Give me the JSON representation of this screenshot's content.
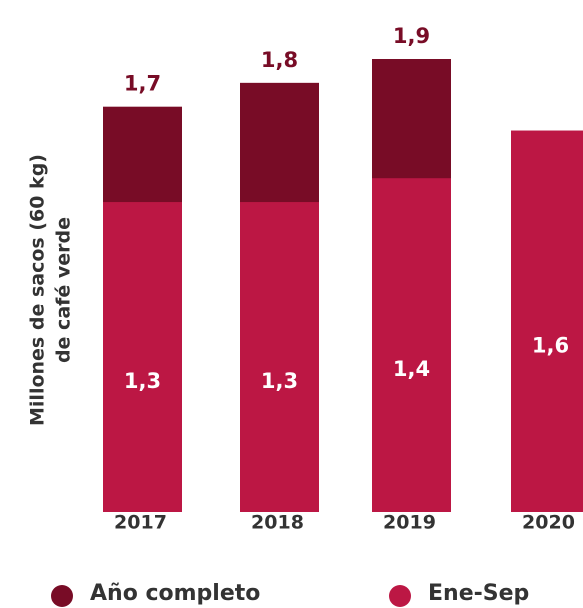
{
  "chart_data": {
    "type": "bar",
    "mode": "overlap",
    "y_label": [
      "Millones de sacos (60 kg)",
      "de café verde"
    ],
    "categories": [
      "2017",
      "2018",
      "2019",
      "2020"
    ],
    "series": [
      {
        "name": "Año completo",
        "color": "#780c26",
        "values": [
          1.7,
          1.8,
          1.9,
          null
        ],
        "value_labels": [
          "1,7",
          "1,8",
          "1,9",
          null
        ],
        "label_color": "#780c26",
        "label_position": "above"
      },
      {
        "name": "Ene-Sep",
        "color": "#bc1744",
        "values": [
          1.3,
          1.3,
          1.4,
          1.6
        ],
        "value_labels": [
          "1,3",
          "1,3",
          "1,4",
          "1,6"
        ],
        "label_color": "#ffffff",
        "label_position": "center"
      }
    ]
  }
}
